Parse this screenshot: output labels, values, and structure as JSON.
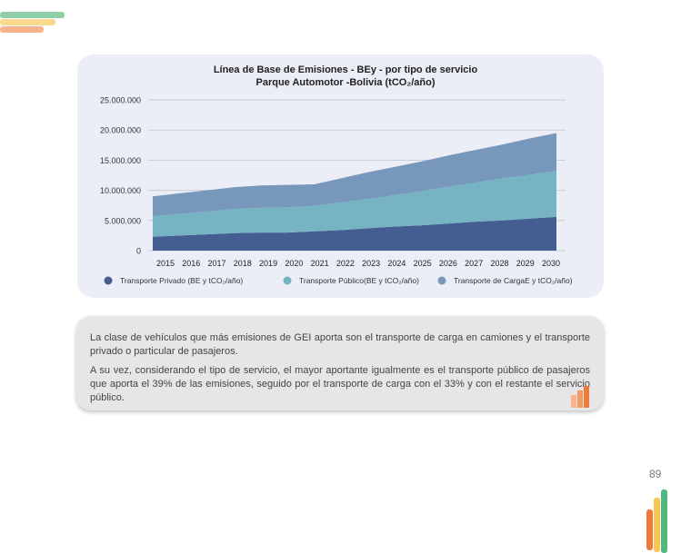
{
  "decor": {
    "colors": {
      "green": "#8fd0a8",
      "yellow": "#f9d98c",
      "orange": "#f8b38b",
      "orange_dark": "#ee7b3c",
      "yellow_dark": "#f7c653",
      "green_dark": "#4fb97f"
    }
  },
  "chart_data": {
    "type": "area",
    "stacked": true,
    "title": "Línea de Base de Emisiones - BEy - por tipo de servicio",
    "subtitle": "Parque Automotor -Bolivia (tCO₂/año)",
    "categories": [
      "2015",
      "2016",
      "2017",
      "2018",
      "2019",
      "2020",
      "2021",
      "2022",
      "2023",
      "2024",
      "2025",
      "2026",
      "2027",
      "2028",
      "2029",
      "2030"
    ],
    "ylim": [
      0,
      25000000
    ],
    "yticks": [
      "0",
      "5.000.000",
      "10.000.000",
      "15.000.000",
      "20.000.000",
      "25.000.000"
    ],
    "ytick_values": [
      0,
      5000000,
      10000000,
      15000000,
      20000000,
      25000000
    ],
    "grid": true,
    "legend_position": "bottom",
    "series": [
      {
        "name": "Transporte Privado (BE y tCO₂/año)",
        "color": "#445e92",
        "values": [
          2300000,
          2500000,
          2700000,
          2900000,
          3000000,
          3000000,
          3200000,
          3400000,
          3700000,
          4000000,
          4200000,
          4500000,
          4800000,
          5000000,
          5300000,
          5600000
        ]
      },
      {
        "name": "Transporte Público(BE y tCO₂/año)",
        "color": "#76b3c3",
        "values": [
          3400000,
          3600000,
          3800000,
          4000000,
          4100000,
          4200000,
          4200000,
          4600000,
          4900000,
          5200000,
          5700000,
          6100000,
          6500000,
          7000000,
          7300000,
          7600000
        ]
      },
      {
        "name": "Transporte de CargaE y tCO₂/año)",
        "color": "#7797bb",
        "values": [
          3300000,
          3400000,
          3500000,
          3600000,
          3700000,
          3700000,
          3600000,
          4000000,
          4400000,
          4700000,
          4900000,
          5200000,
          5400000,
          5600000,
          6000000,
          6300000
        ]
      }
    ]
  },
  "text": {
    "p1": "La clase de vehículos que más emisiones de GEI aporta son el transporte de carga en camiones y el transporte privado o particular de pasajeros.",
    "p2": "A su vez, considerando el tipo de servicio, el mayor aportante igualmente es el transporte público de pasajeros que aporta el 39% de las emisiones, seguido por el transporte de carga con el 33% y con el restante el servicio público."
  },
  "page_number": "89"
}
